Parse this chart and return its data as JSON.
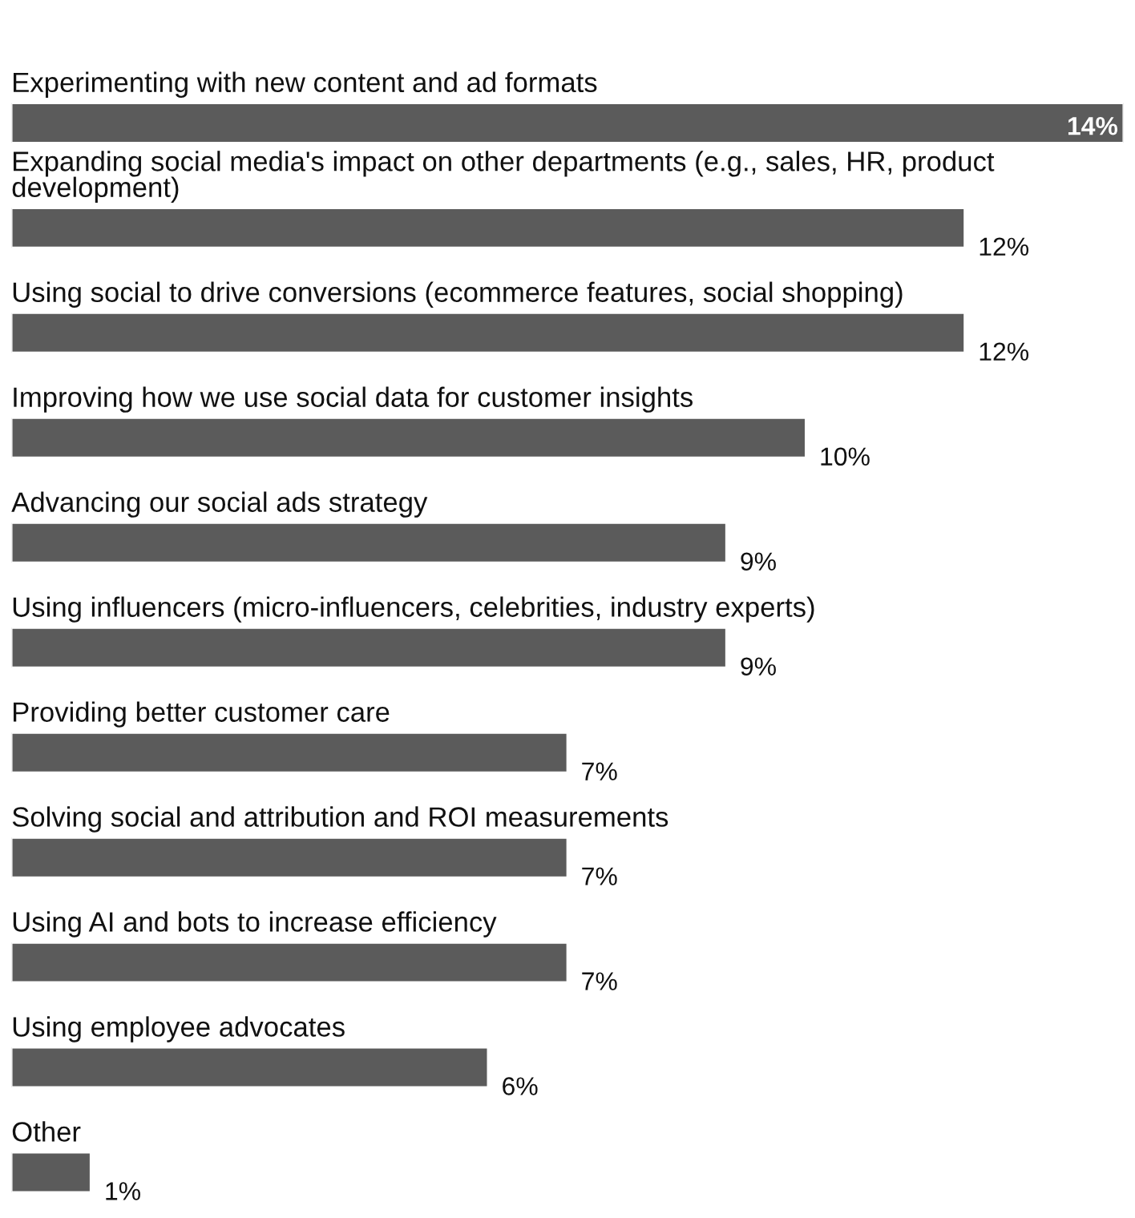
{
  "chart_data": {
    "type": "bar",
    "orientation": "horizontal",
    "categories": [
      "Experimenting with new content and ad formats",
      "Expanding social media's impact on other departments (e.g., sales, HR, product development)",
      "Using social to drive conversions (ecommerce features, social shopping)",
      "Improving how we use social data for customer insights",
      "Advancing our social ads strategy",
      "Using influencers (micro-influencers, celebrities, industry experts)",
      "Providing better customer care",
      "Solving social and attribution and ROI measurements",
      "Using AI and bots to increase efficiency",
      "Using employee advocates",
      "Other"
    ],
    "values": [
      14,
      12,
      12,
      10,
      9,
      9,
      7,
      7,
      7,
      6,
      1
    ],
    "value_labels": [
      "14%",
      "12%",
      "12%",
      "10%",
      "9%",
      "9%",
      "7%",
      "7%",
      "7%",
      "6%",
      "1%"
    ],
    "color": "#5b5b5b",
    "xlim": [
      0,
      14
    ]
  }
}
